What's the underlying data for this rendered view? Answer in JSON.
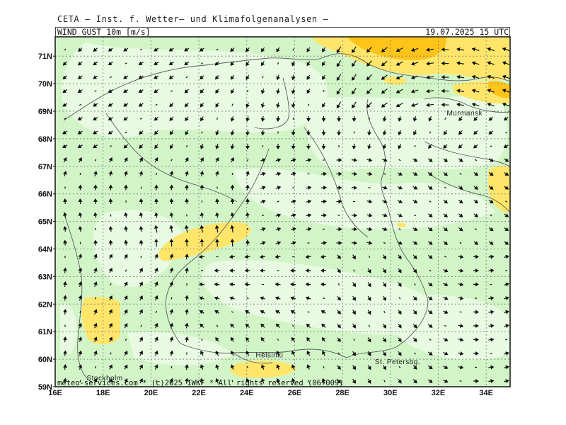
{
  "header": {
    "title": "CETA — Inst. f. Wetter— und Klimafolgenanalysen —",
    "parameter": "WIND_GUST_10m_[m/s]",
    "valid_time": "19.07.2025 15 UTC"
  },
  "map": {
    "lon_min": 16,
    "lon_max": 35,
    "lat_min": 59,
    "lat_max": 71.7,
    "lat_labels": [
      "71N",
      "70N",
      "69N",
      "68N",
      "67N",
      "66N",
      "65N",
      "64N",
      "63N",
      "62N",
      "61N",
      "60N",
      "59N"
    ],
    "lon_labels": [
      "16E",
      "18E",
      "20E",
      "22E",
      "24E",
      "26E",
      "28E",
      "30E",
      "32E",
      "34E"
    ],
    "fill_colors": {
      "very_light": "#e8fbe2",
      "light": "#d2f5c8",
      "yellow": "#ffe66a",
      "orange": "#ffc41a"
    },
    "cities": [
      {
        "name": "Murmansk",
        "lon": 33.1,
        "lat": 68.95
      },
      {
        "name": "Helsinki",
        "lon": 24.95,
        "lat": 60.17
      },
      {
        "name": "Stockholm",
        "lon": 18.07,
        "lat": 59.33
      },
      {
        "name": "St. Petersbg.",
        "lon": 30.3,
        "lat": 59.93
      }
    ]
  },
  "footer": "meteo-services.com * (c)2025 IWKF * All rights reserved (06+009)"
}
